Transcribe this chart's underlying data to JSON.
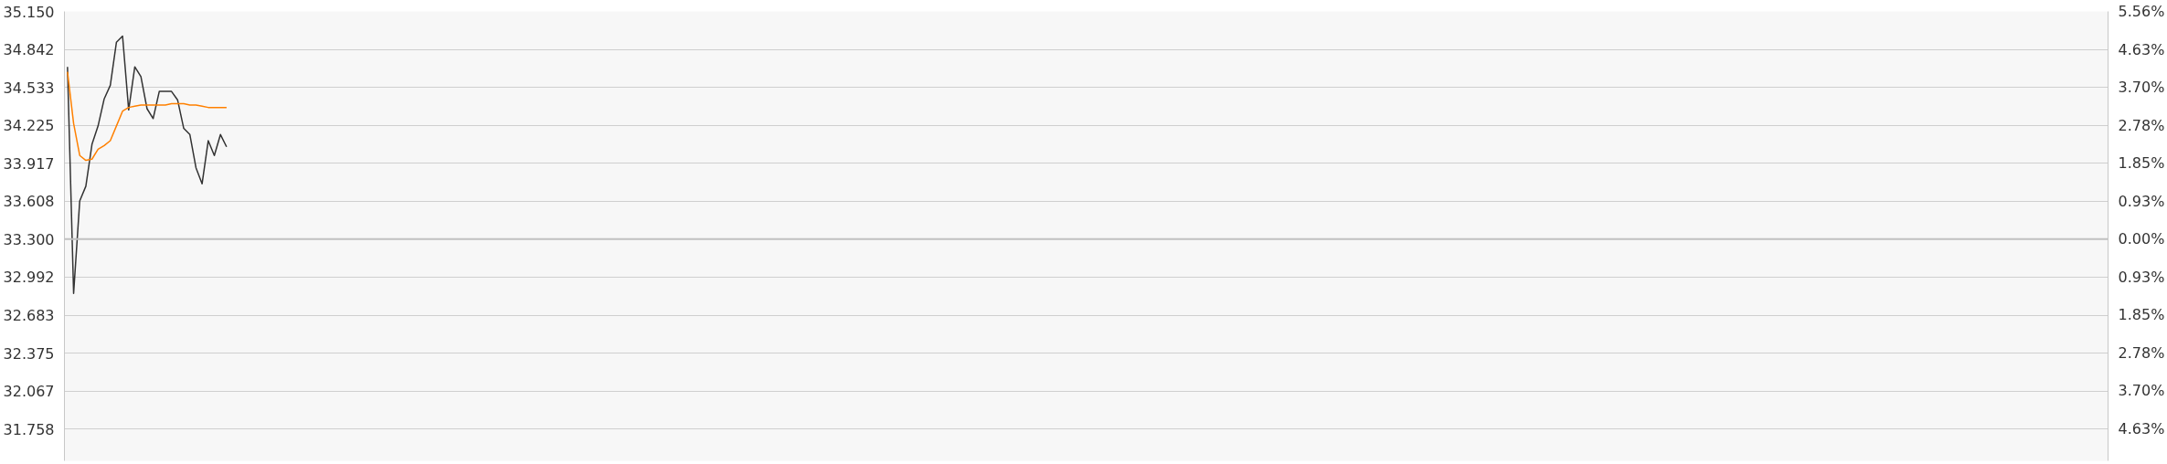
{
  "chart_data": {
    "type": "line",
    "categories": [
      null,
      null,
      null,
      null,
      null,
      null,
      null,
      null,
      null,
      null,
      null,
      null,
      null,
      null,
      null,
      null,
      null,
      null,
      null,
      null,
      null,
      null,
      null,
      null,
      null,
      null,
      null,
      null,
      null,
      null,
      null,
      null,
      null,
      null,
      null,
      null,
      null,
      null,
      null,
      null,
      null,
      null,
      null,
      null,
      null,
      null,
      null,
      null,
      null,
      null,
      null,
      null,
      null,
      null,
      null,
      null,
      null,
      null,
      null,
      null,
      null,
      null,
      null,
      null,
      null,
      null,
      null,
      null,
      null,
      null,
      null,
      null,
      null,
      null,
      null,
      null,
      null,
      null,
      null,
      null,
      null,
      null,
      null,
      null,
      null,
      null,
      null,
      null,
      null,
      null,
      null,
      null,
      null,
      null,
      null,
      null,
      null,
      null,
      null,
      null,
      null,
      null,
      null,
      null,
      null,
      null,
      null,
      null,
      null,
      null,
      null,
      null,
      null,
      null,
      null,
      null,
      null,
      null,
      null,
      null,
      null,
      null,
      null,
      null,
      null,
      null,
      null,
      null,
      null,
      null,
      null,
      null,
      null,
      null,
      null,
      null,
      null,
      null,
      null,
      null,
      null,
      null,
      null,
      null,
      null,
      null,
      null,
      null,
      null,
      null,
      null,
      null,
      null,
      null,
      null,
      null,
      null,
      null,
      null,
      null,
      null,
      null,
      null,
      null,
      null,
      null,
      null,
      null,
      null,
      null,
      null,
      null,
      null,
      null,
      null,
      null,
      null,
      null,
      null,
      null,
      null,
      null,
      null,
      null,
      null,
      null,
      null,
      null,
      null,
      null,
      null,
      null,
      null,
      null,
      null,
      null,
      null,
      null,
      null,
      null,
      null,
      null,
      null,
      null,
      null,
      null,
      null,
      null,
      null,
      null,
      null,
      null,
      null,
      null,
      null,
      null,
      null,
      null,
      null,
      null,
      null,
      null,
      null,
      null,
      null,
      null,
      null,
      null,
      null,
      null,
      null,
      null,
      null,
      null,
      null,
      null,
      null,
      null,
      null,
      null,
      null,
      null,
      null,
      null,
      null,
      null,
      null,
      null,
      null,
      null,
      null,
      null,
      null,
      null,
      null,
      null,
      null,
      null,
      null,
      null,
      null,
      null,
      null,
      null,
      null,
      null,
      null,
      null,
      null,
      null,
      null,
      null,
      null,
      null,
      null,
      null,
      null,
      null,
      null,
      null,
      null,
      null,
      null,
      null,
      null,
      null,
      null,
      null,
      null,
      null,
      null,
      null,
      null,
      null,
      null,
      null,
      null,
      null,
      null,
      null,
      null,
      null,
      null,
      null,
      null,
      null,
      null,
      null,
      null,
      null,
      null,
      null,
      null,
      null,
      null,
      null,
      null,
      null,
      null,
      null,
      null,
      null,
      null,
      null,
      null,
      null,
      null,
      null,
      null,
      null,
      null,
      null,
      null,
      null
    ],
    "series": [
      {
        "color": "#333333",
        "values": [
          34.7,
          32.86,
          33.61,
          33.73,
          34.07,
          34.22,
          34.44,
          34.55,
          34.9,
          34.95,
          34.35,
          34.7,
          34.62,
          34.36,
          34.28,
          34.5,
          34.5,
          34.5,
          34.43,
          34.2,
          34.15,
          33.88,
          33.75,
          34.1,
          33.98,
          34.15,
          34.05,
          null,
          null,
          null,
          null,
          null,
          null,
          null,
          null,
          null,
          null,
          null,
          null,
          null,
          null,
          null,
          null,
          null,
          null,
          null,
          null,
          null,
          null,
          null,
          null,
          null,
          null,
          null,
          null,
          null,
          null,
          null,
          null,
          null,
          null,
          null,
          null,
          null,
          null,
          null,
          null,
          null,
          null,
          null,
          null,
          null,
          null,
          null,
          null,
          null,
          null,
          null,
          null,
          null,
          null,
          null,
          null,
          null,
          null,
          null,
          null,
          null,
          null,
          null,
          null,
          null,
          null,
          null,
          null,
          null,
          null,
          null,
          null,
          null,
          null,
          null,
          null,
          null,
          null,
          null,
          null,
          null,
          null,
          null,
          null,
          null,
          null,
          null,
          null,
          null,
          null,
          null,
          null,
          null,
          null,
          null,
          null,
          null,
          null,
          null,
          null,
          null,
          null,
          null,
          null,
          null,
          null,
          null,
          null,
          null,
          null,
          null,
          null,
          null,
          null,
          null,
          null,
          null,
          null,
          null,
          null,
          null,
          null,
          null,
          null,
          null,
          null,
          null,
          null,
          null,
          null,
          null,
          null,
          null,
          null,
          null,
          null,
          null,
          null,
          null,
          null,
          null,
          null,
          null,
          null,
          null,
          null,
          null,
          null,
          null,
          null,
          null,
          null,
          null,
          null,
          null,
          null,
          null,
          null,
          null,
          null,
          null,
          null,
          null,
          null,
          null,
          null,
          null,
          null,
          null,
          null,
          null,
          null,
          null,
          null,
          null,
          null,
          null,
          null,
          null,
          null,
          null,
          null,
          null,
          null,
          null,
          null,
          null,
          null,
          null,
          null,
          null,
          null,
          null,
          null,
          null,
          null,
          null,
          null,
          null,
          null,
          null,
          null,
          null,
          null,
          null,
          null,
          null,
          null,
          null,
          null,
          null,
          null,
          null,
          null,
          null,
          null,
          null,
          null,
          null,
          null,
          null,
          null,
          null,
          null,
          null,
          null,
          null,
          null,
          null,
          null,
          null,
          null,
          null,
          null,
          null,
          null,
          null,
          null,
          null,
          null,
          null,
          null,
          null,
          null,
          null,
          null,
          null,
          null,
          null,
          null,
          null,
          null,
          null,
          null,
          null,
          null,
          null,
          null,
          null,
          null,
          null,
          null,
          null,
          null,
          null,
          null,
          null,
          null,
          null,
          null,
          null,
          null,
          null,
          null,
          null,
          null,
          null,
          null,
          null,
          null,
          null,
          null,
          null,
          null,
          null,
          null,
          null,
          null,
          null,
          null,
          null,
          null,
          null,
          null,
          null,
          null,
          null,
          null,
          null,
          null,
          null,
          null,
          null,
          null,
          null,
          null,
          null
        ]
      },
      {
        "color": "#ff8000",
        "values": [
          34.66,
          34.24,
          33.98,
          33.94,
          33.95,
          34.03,
          34.06,
          34.1,
          34.22,
          34.34,
          34.37,
          34.38,
          34.39,
          34.39,
          34.39,
          34.39,
          34.39,
          34.4,
          34.4,
          34.4,
          34.39,
          34.39,
          34.38,
          34.37,
          34.37,
          34.37,
          34.37,
          null,
          null,
          null,
          null,
          null,
          null,
          null,
          null,
          null,
          null,
          null,
          null,
          null,
          null,
          null,
          null,
          null,
          null,
          null,
          null,
          null,
          null,
          null,
          null,
          null,
          null,
          null,
          null,
          null,
          null,
          null,
          null,
          null,
          null,
          null,
          null,
          null,
          null,
          null,
          null,
          null,
          null,
          null,
          null,
          null,
          null,
          null,
          null,
          null,
          null,
          null,
          null,
          null,
          null,
          null,
          null,
          null,
          null,
          null,
          null,
          null,
          null,
          null,
          null,
          null,
          null,
          null,
          null,
          null,
          null,
          null,
          null,
          null,
          null,
          null,
          null,
          null,
          null,
          null,
          null,
          null,
          null,
          null,
          null,
          null,
          null,
          null,
          null,
          null,
          null,
          null,
          null,
          null,
          null,
          null,
          null,
          null,
          null,
          null,
          null,
          null,
          null,
          null,
          null,
          null,
          null,
          null,
          null,
          null,
          null,
          null,
          null,
          null,
          null,
          null,
          null,
          null,
          null,
          null,
          null,
          null,
          null,
          null,
          null,
          null,
          null,
          null,
          null,
          null,
          null,
          null,
          null,
          null,
          null,
          null,
          null,
          null,
          null,
          null,
          null,
          null,
          null,
          null,
          null,
          null,
          null,
          null,
          null,
          null,
          null,
          null,
          null,
          null,
          null,
          null,
          null,
          null,
          null,
          null,
          null,
          null,
          null,
          null,
          null,
          null,
          null,
          null,
          null,
          null,
          null,
          null,
          null,
          null,
          null,
          null,
          null,
          null,
          null,
          null,
          null,
          null,
          null,
          null,
          null,
          null,
          null,
          null,
          null,
          null,
          null,
          null,
          null,
          null,
          null,
          null,
          null,
          null,
          null,
          null,
          null,
          null,
          null,
          null,
          null,
          null,
          null,
          null,
          null,
          null,
          null,
          null,
          null,
          null,
          null,
          null,
          null,
          null,
          null,
          null,
          null,
          null,
          null,
          null,
          null,
          null,
          null,
          null,
          null,
          null,
          null,
          null,
          null,
          null,
          null,
          null,
          null,
          null,
          null,
          null,
          null,
          null,
          null,
          null,
          null,
          null,
          null,
          null,
          null,
          null,
          null,
          null,
          null,
          null,
          null,
          null,
          null,
          null,
          null,
          null,
          null,
          null,
          null,
          null,
          null,
          null,
          null,
          null,
          null,
          null,
          null,
          null,
          null,
          null,
          null,
          null,
          null,
          null,
          null,
          null,
          null,
          null,
          null,
          null,
          null,
          null,
          null,
          null,
          null,
          null,
          null,
          null,
          null,
          null,
          null,
          null,
          null,
          null,
          null,
          null,
          null,
          null,
          null,
          null,
          null,
          null,
          null,
          null
        ]
      }
    ],
    "ylim": [
      31.5,
      35.15
    ],
    "yticks": [
      {
        "value": 31.758,
        "label": "31.758"
      },
      {
        "value": 32.067,
        "label": "32.067"
      },
      {
        "value": 32.375,
        "label": "32.375"
      },
      {
        "value": 32.683,
        "label": "32.683"
      },
      {
        "value": 32.992,
        "label": "32.992"
      },
      {
        "value": 33.3,
        "label": "33.300"
      },
      {
        "value": 33.608,
        "label": "33.608"
      },
      {
        "value": 33.917,
        "label": "33.917"
      },
      {
        "value": 34.225,
        "label": "34.225"
      },
      {
        "value": 34.533,
        "label": "34.533"
      },
      {
        "value": 34.842,
        "label": "34.842"
      },
      {
        "value": 35.15,
        "label": "35.150"
      }
    ],
    "y2lim": [
      -5.41,
      5.56
    ],
    "y2ticks": [
      {
        "value": -4.63,
        "label": "4.63%"
      },
      {
        "value": -3.7,
        "label": "3.70%"
      },
      {
        "value": -2.78,
        "label": "2.78%"
      },
      {
        "value": -1.85,
        "label": "1.85%"
      },
      {
        "value": -0.93,
        "label": "0.93%"
      },
      {
        "value": 0,
        "label": "0.00%"
      },
      {
        "value": 0.93,
        "label": "0.93%"
      },
      {
        "value": 1.85,
        "label": "1.85%"
      },
      {
        "value": 2.78,
        "label": "2.78%"
      },
      {
        "value": 3.7,
        "label": "3.70%"
      },
      {
        "value": 4.63,
        "label": "4.63%"
      },
      {
        "value": 5.56,
        "label": "5.56%"
      }
    ],
    "ref_lines": [
      {
        "axis": "y",
        "value": 33.3,
        "color": "#c0c0c0"
      }
    ],
    "grid": "y",
    "tick_labels": "y",
    "marker": "none",
    "line_style": "solid"
  }
}
